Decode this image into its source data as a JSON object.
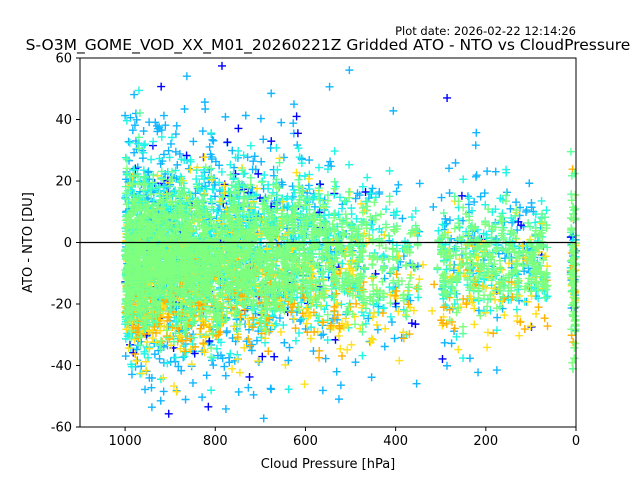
{
  "chart_data": {
    "type": "scatter",
    "title": "S-O3M_GOME_VOD_XX_M01_20260221Z Gridded ATO - NTO vs CloudPressure",
    "plot_date_label": "Plot date: 2026-02-22 12:14:26",
    "xlabel": "Cloud Pressure [hPa]",
    "ylabel": "ATO - NTO [DU]",
    "xlim": [
      1100,
      0
    ],
    "ylim": [
      -60,
      60
    ],
    "x_inverted": true,
    "xticks": [
      1000,
      800,
      600,
      400,
      200,
      0
    ],
    "yticks": [
      -60,
      -40,
      -20,
      0,
      20,
      40,
      60
    ],
    "marker": "+",
    "reference_line": {
      "y": 0,
      "color": "#000000"
    },
    "grid": false,
    "series": [
      {
        "name": "green",
        "color": "#7fff7f",
        "center_y": -5,
        "spread_y": 10
      },
      {
        "name": "light-green",
        "color": "#5cff9c",
        "center_y": -5,
        "spread_y": 11
      },
      {
        "name": "cyan",
        "color": "#1ff5e5",
        "center_y": -4,
        "spread_y": 15
      },
      {
        "name": "light-blue",
        "color": "#11b6ff",
        "center_y": -3,
        "spread_y": 22
      },
      {
        "name": "yellow",
        "color": "#ffe01a",
        "center_y": -12,
        "spread_y": 14
      },
      {
        "name": "orange",
        "color": "#ffb000",
        "center_y": -20,
        "spread_y": 8
      },
      {
        "name": "dark-blue",
        "color": "#0000ff",
        "center_y": -5,
        "spread_y": 25
      }
    ],
    "data_extent": {
      "x_range": [
        1000,
        0
      ],
      "y_range_at_800hPa": [
        -55,
        35
      ],
      "y_range_at_200hPa": [
        -35,
        15
      ],
      "dense_core_y_range": [
        -20,
        15
      ]
    }
  }
}
